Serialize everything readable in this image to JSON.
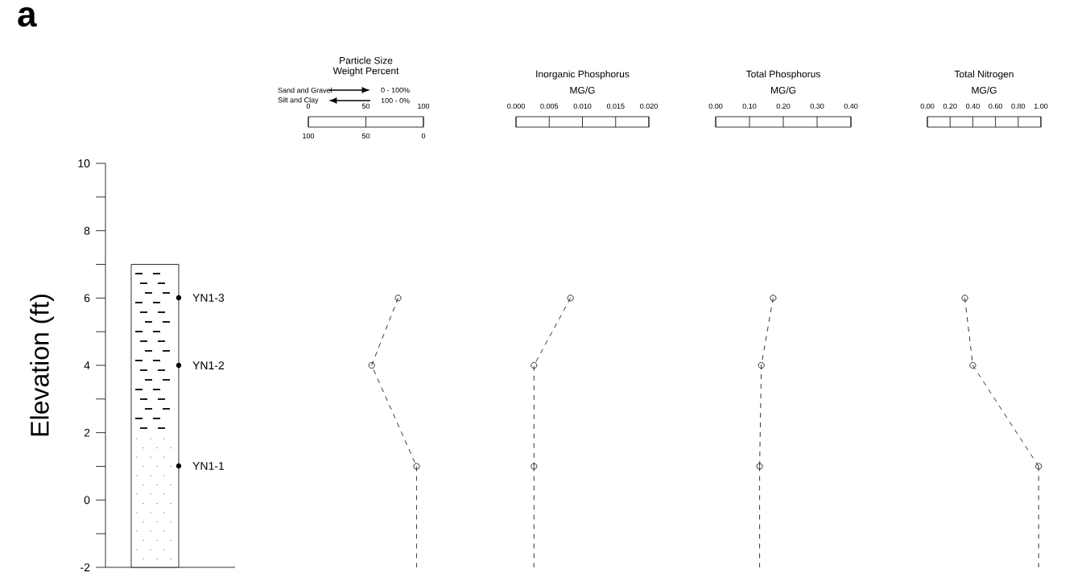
{
  "chart_data": [
    {
      "type": "bar",
      "categories": [
        null
      ],
      "base": [
        -2
      ],
      "values": [
        9
      ],
      "color": "#ffffff",
      "ylabel": "Elevation (ft)",
      "ylim": [
        -2,
        10
      ],
      "yticks": [
        -2,
        0,
        2,
        4,
        6,
        8,
        10
      ],
      "annotations": [
        "a",
        "YN1-3",
        "YN1-2",
        "YN1-1"
      ]
    },
    {
      "type": "line",
      "title": "Particle Size",
      "subtitle": "Weight Percent",
      "annotations": [
        "Sand and Gravel",
        "0 - 100%",
        "Silt and Clay",
        "100 - 0%"
      ],
      "xlim": [
        0,
        100
      ],
      "xticks": [
        0,
        50,
        100
      ],
      "x2lim": [
        100,
        0
      ],
      "x2ticks": [
        100,
        50,
        0
      ],
      "ylim": [
        -2,
        10
      ],
      "tick_labels": "x",
      "marker": "circle",
      "line_style": "dashed",
      "series": [
        {
          "color": "#000000",
          "x": [
            78,
            55,
            94
          ],
          "values": [
            6,
            4,
            1
          ]
        },
        {
          "color": "#000000",
          "x": [
            94,
            94
          ],
          "values": [
            1,
            -2
          ],
          "marker": "none"
        }
      ]
    },
    {
      "type": "line",
      "title": "Inorganic Phosphorus",
      "subtitle": "MG/G",
      "xlim": [
        0,
        0.02
      ],
      "xticks": [
        {
          "value": 0,
          "label": "0.000"
        },
        {
          "value": 0.005,
          "label": "0.005"
        },
        {
          "value": 0.01,
          "label": "0.010"
        },
        {
          "value": 0.015,
          "label": "0.015"
        },
        {
          "value": 0.02,
          "label": "0.020"
        }
      ],
      "ylim": [
        -2,
        10
      ],
      "tick_labels": "x",
      "marker": "circle",
      "line_style": "dashed",
      "series": [
        {
          "color": "#000000",
          "x": [
            0.0082,
            0.0027,
            0.0027
          ],
          "values": [
            6,
            4,
            1
          ]
        },
        {
          "color": "#000000",
          "x": [
            0.0027,
            0.0027
          ],
          "values": [
            1,
            -2
          ],
          "marker": "none"
        }
      ]
    },
    {
      "type": "line",
      "title": "Total Phosphorus",
      "subtitle": "MG/G",
      "xlim": [
        0,
        0.4
      ],
      "xticks": [
        {
          "value": 0,
          "label": "0.00"
        },
        {
          "value": 0.1,
          "label": "0.10"
        },
        {
          "value": 0.2,
          "label": "0.20"
        },
        {
          "value": 0.3,
          "label": "0.30"
        },
        {
          "value": 0.4,
          "label": "0.40"
        }
      ],
      "ylim": [
        -2,
        10
      ],
      "tick_labels": "x",
      "marker": "circle",
      "line_style": "dashed",
      "series": [
        {
          "color": "#000000",
          "x": [
            0.17,
            0.135,
            0.13
          ],
          "values": [
            6,
            4,
            1
          ]
        },
        {
          "color": "#000000",
          "x": [
            0.13,
            0.13
          ],
          "values": [
            1,
            -2
          ],
          "marker": "none"
        }
      ]
    },
    {
      "type": "line",
      "title": "Total Nitrogen",
      "subtitle": "MG/G",
      "xlim": [
        0,
        1
      ],
      "xticks": [
        {
          "value": 0,
          "label": "0.00"
        },
        {
          "value": 0.2,
          "label": "0.20"
        },
        {
          "value": 0.4,
          "label": "0.40"
        },
        {
          "value": 0.6,
          "label": "0.60"
        },
        {
          "value": 0.8,
          "label": "0.80"
        },
        {
          "value": 1,
          "label": "1.00"
        }
      ],
      "ylim": [
        -2,
        10
      ],
      "tick_labels": "x",
      "marker": "circle",
      "line_style": "dashed",
      "series": [
        {
          "color": "#000000",
          "x": [
            0.33,
            0.4,
            0.98
          ],
          "values": [
            6,
            4,
            1
          ]
        },
        {
          "color": "#000000",
          "x": [
            0.98,
            0.98
          ],
          "values": [
            1,
            -2
          ],
          "marker": "none"
        }
      ]
    }
  ]
}
